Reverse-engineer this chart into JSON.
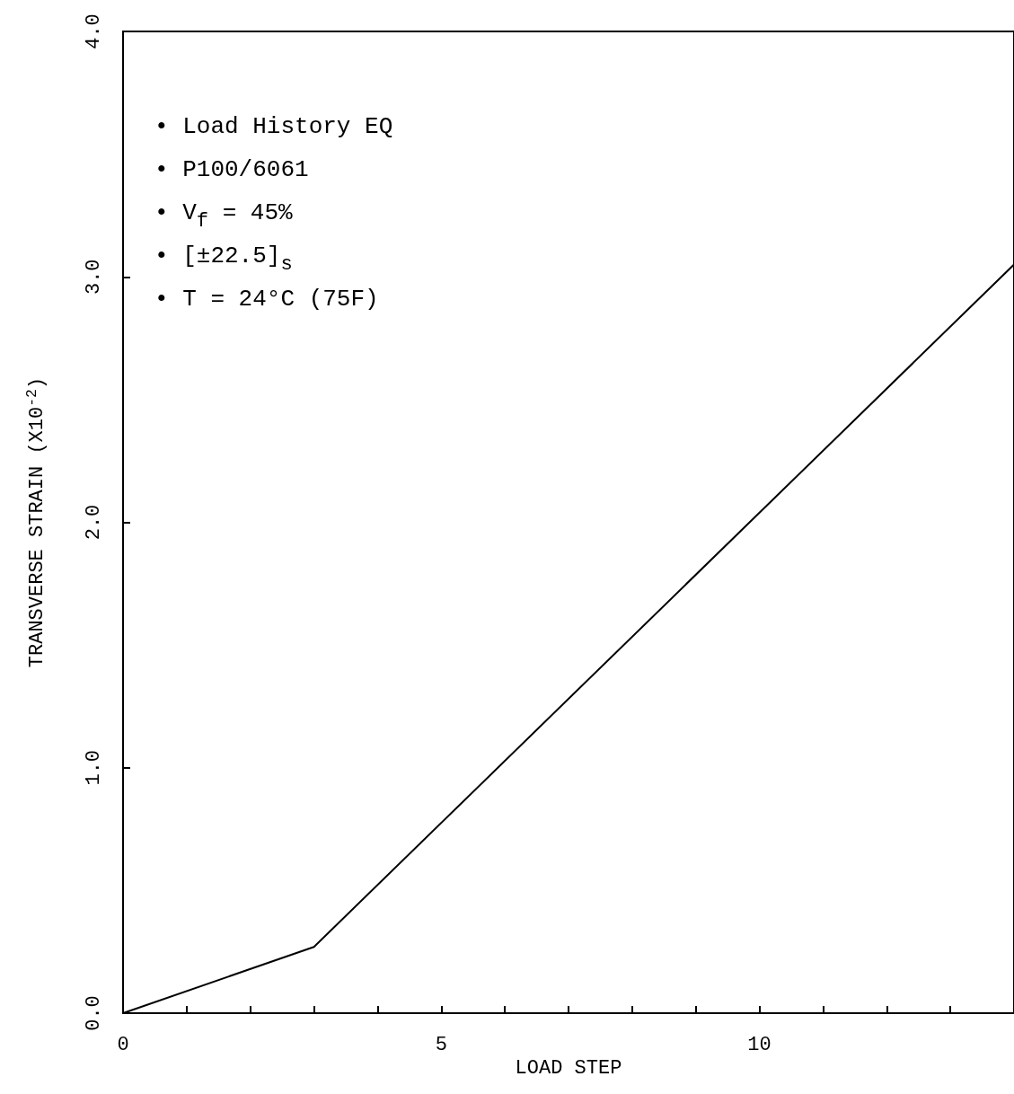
{
  "chart_data": {
    "type": "line",
    "xlabel": "LOAD STEP",
    "ylabel": "TRANSVERSE STRAIN (X10$^{-2}$)",
    "x": [
      0,
      3,
      14
    ],
    "series": [
      {
        "color": "#000000",
        "values": [
          0,
          0.27,
          3.05
        ]
      }
    ],
    "xlim": [
      0,
      14
    ],
    "xticks": [
      0,
      {
        "value": 1,
        "label": null
      },
      {
        "value": 2,
        "label": null
      },
      {
        "value": 3,
        "label": null
      },
      {
        "value": 4,
        "label": null
      },
      5,
      {
        "value": 6,
        "label": null
      },
      {
        "value": 7,
        "label": null
      },
      {
        "value": 8,
        "label": null
      },
      {
        "value": 9,
        "label": null
      },
      10,
      {
        "value": 11,
        "label": null
      },
      {
        "value": 12,
        "label": null
      },
      {
        "value": 13,
        "label": null
      }
    ],
    "ylim": [
      0,
      4
    ],
    "yticks": [
      {
        "value": 0,
        "label": "0.0"
      },
      {
        "value": 1,
        "label": "1.0"
      },
      {
        "value": 2,
        "label": "2.0"
      },
      {
        "value": 3,
        "label": "3.0"
      },
      {
        "value": 4,
        "label": "4.0"
      }
    ],
    "annotations": [
      "• Load History EQ",
      "• P100/6061",
      "• V$_{f}$ = 45%",
      "• [±22.5]$_{s}$",
      "• T = 24°C (75F)"
    ],
    "grid": false,
    "marker": "none",
    "line_style": "solid"
  }
}
